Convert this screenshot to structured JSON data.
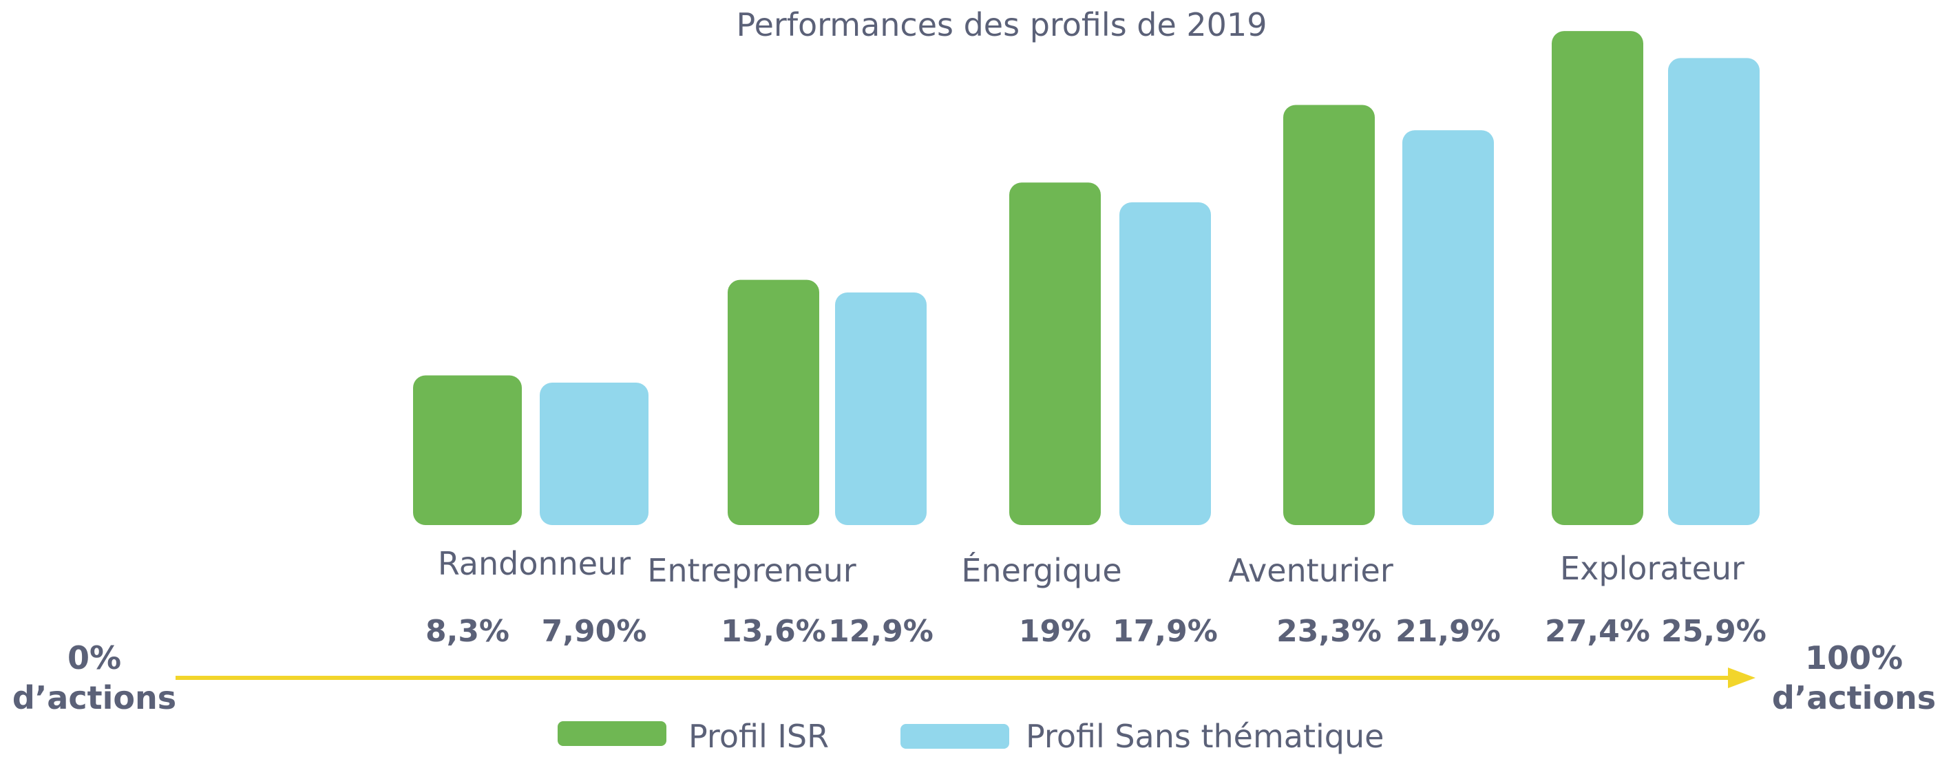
{
  "chart_data": {
    "type": "bar",
    "title": "Performances des profils de 2019",
    "categories": [
      "Randonneur",
      "Entrepreneur",
      "Énergique",
      "Aventurier",
      "Explorateur"
    ],
    "series": [
      {
        "name": "Profil ISR",
        "color": "#6fb753",
        "values": [
          8.3,
          13.6,
          19,
          23.3,
          27.4
        ],
        "labels": [
          "8,3%",
          "13,6%",
          "19%",
          "23,3%",
          "27,4%"
        ]
      },
      {
        "name": "Profil Sans thématique",
        "color": "#92d7ec",
        "values": [
          7.9,
          12.9,
          17.9,
          21.9,
          25.9
        ],
        "labels": [
          "7,90%",
          "12,9%",
          "17,9%",
          "21,9%",
          "25,9%"
        ]
      }
    ],
    "axis": {
      "left_label": [
        "0%",
        "d’actions"
      ],
      "right_label": [
        "100%",
        "d’actions"
      ],
      "arrow_color": "#f2d52b"
    },
    "legend": {
      "position": "bottom-center"
    },
    "grid": false
  }
}
